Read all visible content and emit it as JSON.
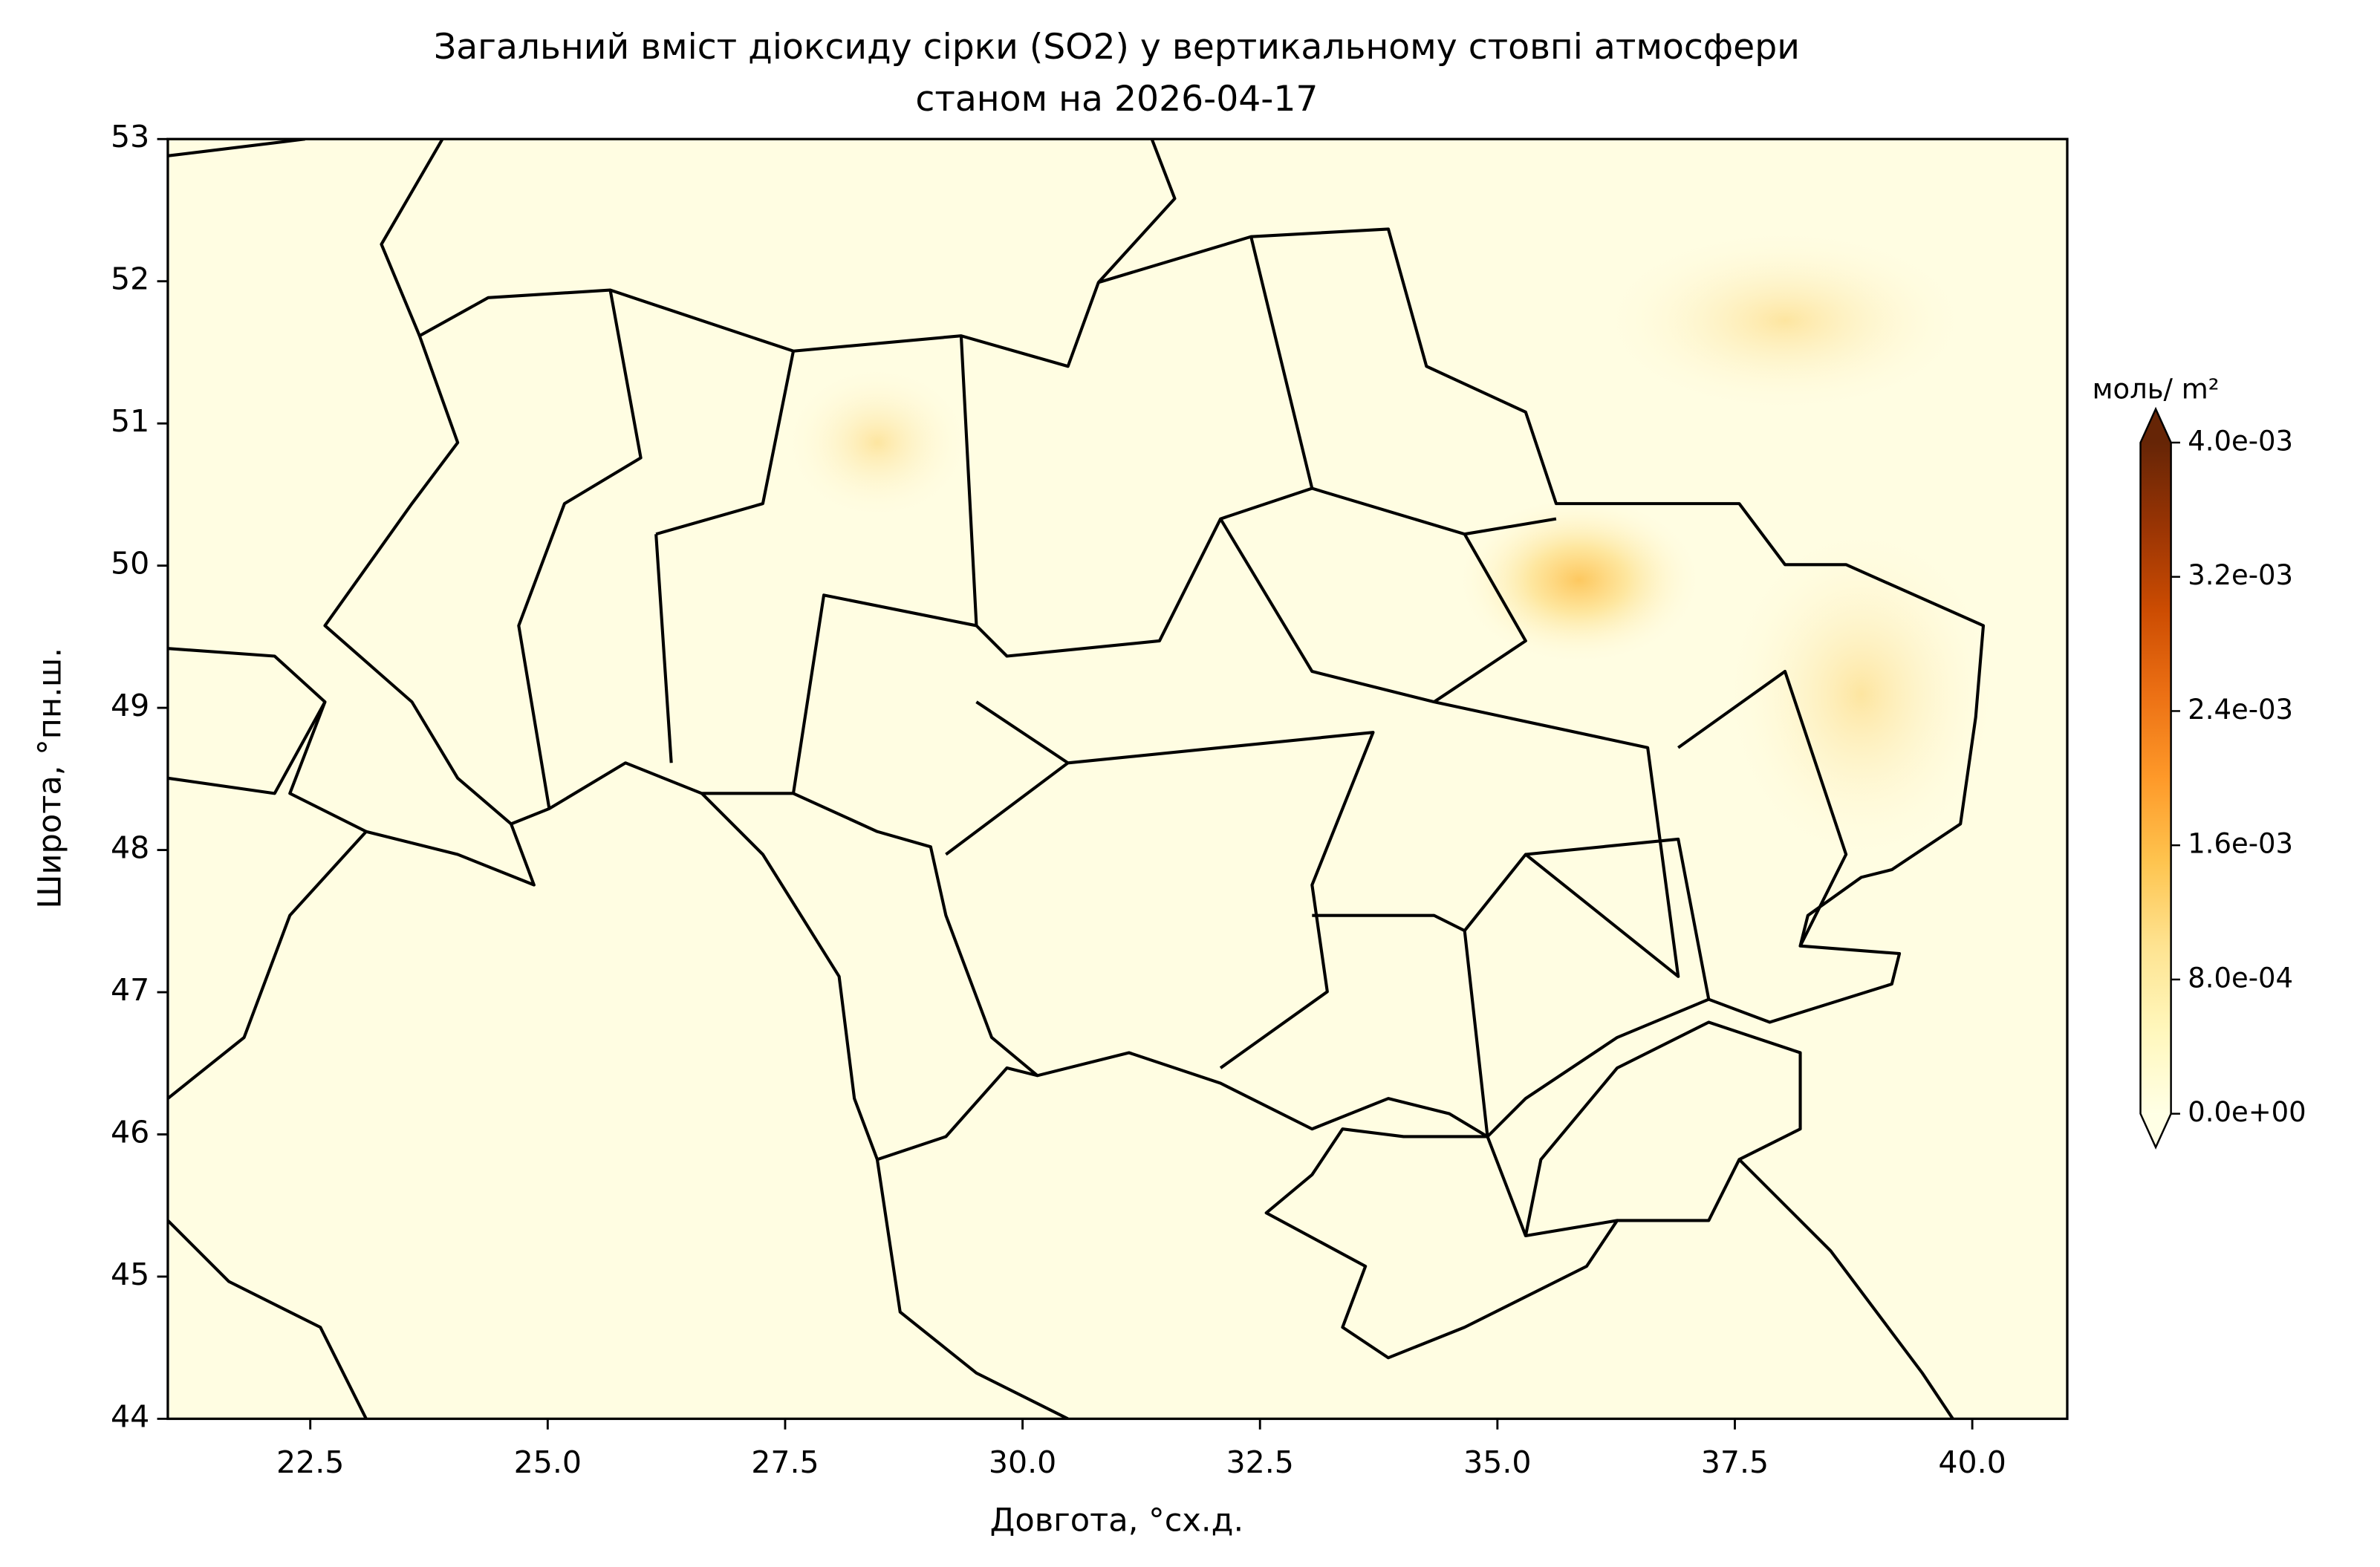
{
  "chart_data": {
    "type": "map",
    "title": "Загальний вміст діоксиду сірки (SO2) у вертикальному стовпі атмосфери",
    "subtitle": "станом на 2026-04-17",
    "x_label": "Довгота, °сх.д.",
    "y_label": "Широта, °пн.ш.",
    "xlim": [
      21,
      41
    ],
    "ylim": [
      44,
      53
    ],
    "xticks": [
      22.5,
      {
        "value": 25,
        "label": "25.0"
      },
      27.5,
      {
        "value": 30,
        "label": "30.0"
      },
      32.5,
      {
        "value": 35,
        "label": "35.0"
      },
      37.5,
      {
        "value": 40,
        "label": "40.0"
      }
    ],
    "yticks": [
      44,
      45,
      46,
      47,
      48,
      49,
      50,
      51,
      52,
      53
    ],
    "colorbar": {
      "label": "моль/ m²",
      "lim": [
        0,
        0.004
      ],
      "ticks": [
        {
          "value": 0,
          "label": "0.0e+00"
        },
        {
          "value": 0.0008,
          "label": "8.0e-04"
        },
        {
          "value": 0.0016,
          "label": "1.6e-03"
        },
        {
          "value": 0.0024,
          "label": "2.4e-03"
        },
        {
          "value": 0.0032,
          "label": "3.2e-03"
        },
        {
          "value": 0.004,
          "label": "4.0e-03"
        }
      ],
      "colors": [
        "#ffffe5",
        "#fff7bc",
        "#fee391",
        "#fec44f",
        "#fe9929",
        "#ec7014",
        "#cc4c02",
        "#993404",
        "#662506"
      ]
    }
  }
}
